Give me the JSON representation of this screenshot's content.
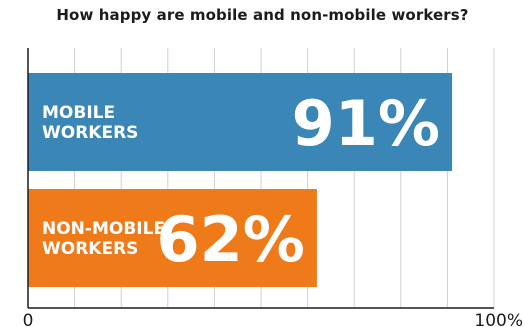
{
  "chart_data": {
    "type": "bar",
    "orientation": "horizontal",
    "title": "How happy are mobile and non-mobile workers?",
    "categories": [
      "MOBILE WORKERS",
      "NON-MOBILE WORKERS"
    ],
    "category_lines": [
      [
        "MOBILE",
        "WORKERS"
      ],
      [
        "NON-MOBILE",
        "WORKERS"
      ]
    ],
    "values": [
      91,
      62
    ],
    "value_labels": [
      "91%",
      "62%"
    ],
    "xlim": [
      0,
      100
    ],
    "tick_labels": [
      "0",
      "100%"
    ],
    "grid": true,
    "colors": [
      "#3a86b7",
      "#ef7a1a"
    ],
    "grid_color": "#d0d0d0",
    "axis_color": "#1c1c1c"
  }
}
